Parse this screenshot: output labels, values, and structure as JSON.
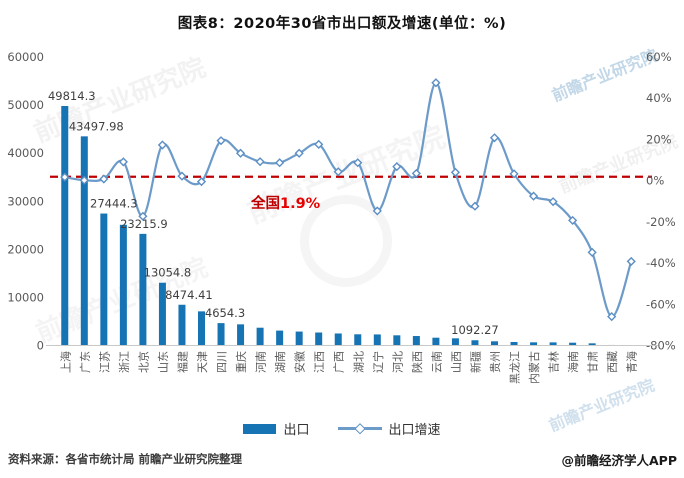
{
  "title": "图表8：2020年30省市出口额及增速(单位：%)",
  "chart_data": {
    "type": "bar",
    "subtype": "combo-bar-line-dual-axis",
    "categories": [
      "上海",
      "广东",
      "江苏",
      "浙江",
      "北京",
      "山东",
      "福建",
      "天津",
      "四川",
      "重庆",
      "河南",
      "湖南",
      "安徽",
      "江西",
      "广西",
      "湖北",
      "辽宁",
      "河北",
      "陕西",
      "云南",
      "山西",
      "新疆",
      "贵州",
      "黑龙江",
      "内蒙古",
      "吉林",
      "海南",
      "甘肃",
      "西藏",
      "青海"
    ],
    "series": [
      {
        "name": "出口",
        "type": "bar",
        "axis": "left",
        "color": "#1673b4",
        "values": [
          49814.3,
          43497.98,
          27444.3,
          25100,
          23215.9,
          13054.8,
          8474.41,
          7100,
          4654.3,
          4400,
          3700,
          3100,
          2900,
          2700,
          2500,
          2330,
          2300,
          2120,
          1970,
          1620,
          1490,
          1092.27,
          870,
          730,
          660,
          650,
          580,
          450,
          110,
          80
        ],
        "value_labels": [
          "49814.3",
          "43497.98",
          "27444.3",
          null,
          "23215.9",
          "13054.8",
          "8474.41",
          null,
          "4654.3",
          null,
          null,
          null,
          null,
          null,
          null,
          null,
          null,
          null,
          null,
          null,
          null,
          "1092.27",
          null,
          null,
          null,
          null,
          null,
          null,
          null,
          null
        ]
      },
      {
        "name": "出口增速",
        "type": "line",
        "axis": "right",
        "color": "#6d9bc9",
        "marker": "diamond",
        "values_pct": [
          1.7,
          0.2,
          0.8,
          9.1,
          -17.3,
          17.3,
          2.2,
          -0.5,
          19.4,
          13.3,
          9.2,
          8.7,
          13.3,
          17.6,
          4.3,
          8.7,
          -14.7,
          6.8,
          3.5,
          47.5,
          4.0,
          -12.4,
          20.8,
          3.3,
          -7.5,
          -10.2,
          -19.3,
          -34.8,
          -66.0,
          -39.2
        ]
      }
    ],
    "left_axis": {
      "min": 0,
      "max": 60000,
      "ticks": [
        60000,
        50000,
        40000,
        30000,
        20000,
        10000,
        0
      ]
    },
    "right_axis": {
      "min": -80,
      "max": 60,
      "ticks_pct": [
        60,
        40,
        20,
        0,
        -20,
        -40,
        -60,
        -80
      ]
    },
    "reference_line": {
      "label": "全国",
      "value_label": "1.9%",
      "value_pct": 1.9,
      "color": "#c00000",
      "style": "dashed"
    },
    "grid": false,
    "legend_position": "bottom"
  },
  "legend": {
    "items": [
      {
        "label": "出口"
      },
      {
        "label": "出口增速"
      }
    ]
  },
  "footer": {
    "source": "资料来源：各省市统计局 前瞻产业研究院整理",
    "credit": "@前瞻经济学人APP"
  },
  "watermark": {
    "text": "前瞻产业研究院"
  },
  "colors": {
    "bar": "#1673b4",
    "line": "#6d9bc9",
    "reference": "#c00000",
    "axis_text": "#595959",
    "axis_line": "#c9c9c9",
    "value_label_text": "#3f3f3f"
  }
}
